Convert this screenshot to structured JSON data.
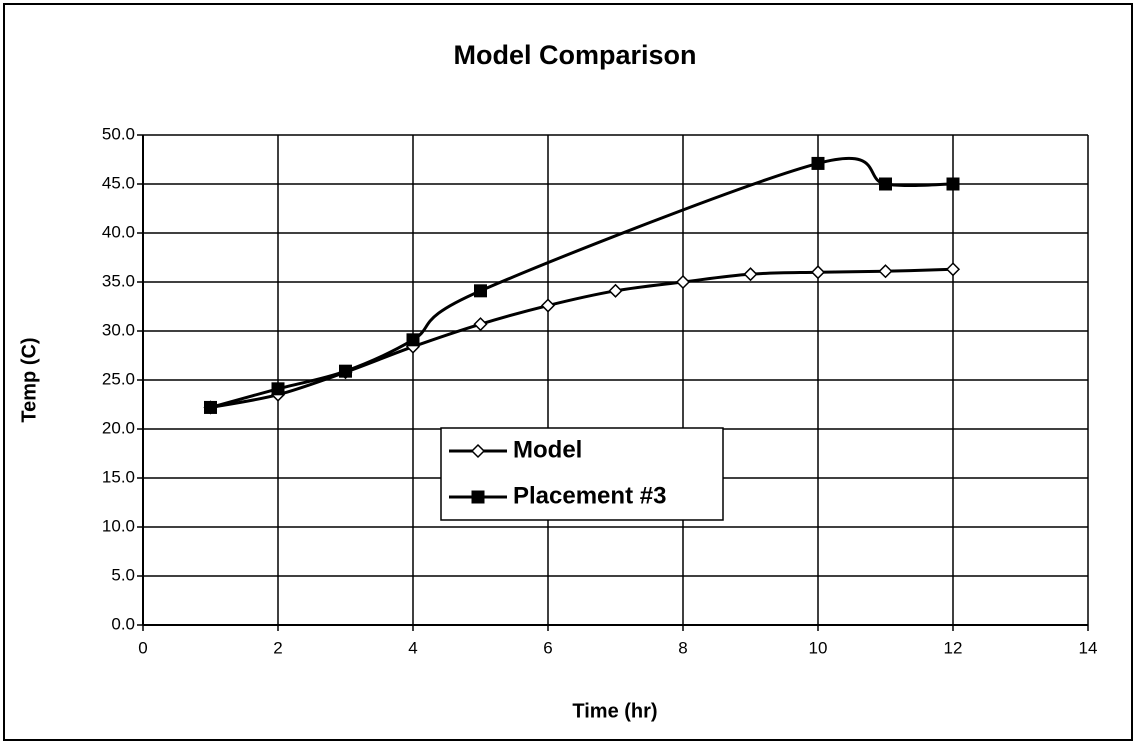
{
  "chart_data": {
    "type": "line",
    "title": "Model Comparison",
    "xlabel": "Time (hr)",
    "ylabel": "Temp (C)",
    "xlim": [
      0,
      14
    ],
    "xticks": [
      0,
      2,
      4,
      6,
      8,
      10,
      12,
      14
    ],
    "ylim": [
      0,
      50
    ],
    "yticks": [
      {
        "value": 0,
        "label": "0.0"
      },
      {
        "value": 5,
        "label": "5.0"
      },
      {
        "value": 10,
        "label": "10.0"
      },
      {
        "value": 15,
        "label": "15.0"
      },
      {
        "value": 20,
        "label": "20.0"
      },
      {
        "value": 25,
        "label": "25.0"
      },
      {
        "value": 30,
        "label": "30.0"
      },
      {
        "value": 35,
        "label": "35.0"
      },
      {
        "value": 40,
        "label": "40.0"
      },
      {
        "value": 45,
        "label": "45.0"
      },
      {
        "value": 50,
        "label": "50.0"
      }
    ],
    "grid": true,
    "smooth": true,
    "series": [
      {
        "name": "Model",
        "color": "#000000",
        "marker": "diamond",
        "x": [
          1,
          2,
          3,
          4,
          5,
          6,
          7,
          8,
          9,
          10,
          11,
          12
        ],
        "values": [
          22.2,
          23.5,
          25.8,
          28.4,
          30.7,
          32.6,
          34.1,
          35.0,
          35.8,
          36.0,
          36.1,
          36.3
        ]
      },
      {
        "name": "Placement #3",
        "color": "#000000",
        "marker": "square",
        "x": [
          1,
          2,
          3,
          4,
          5,
          10,
          11,
          12
        ],
        "values": [
          22.2,
          24.1,
          25.9,
          29.1,
          34.1,
          47.1,
          45.0,
          45.0
        ]
      }
    ]
  }
}
